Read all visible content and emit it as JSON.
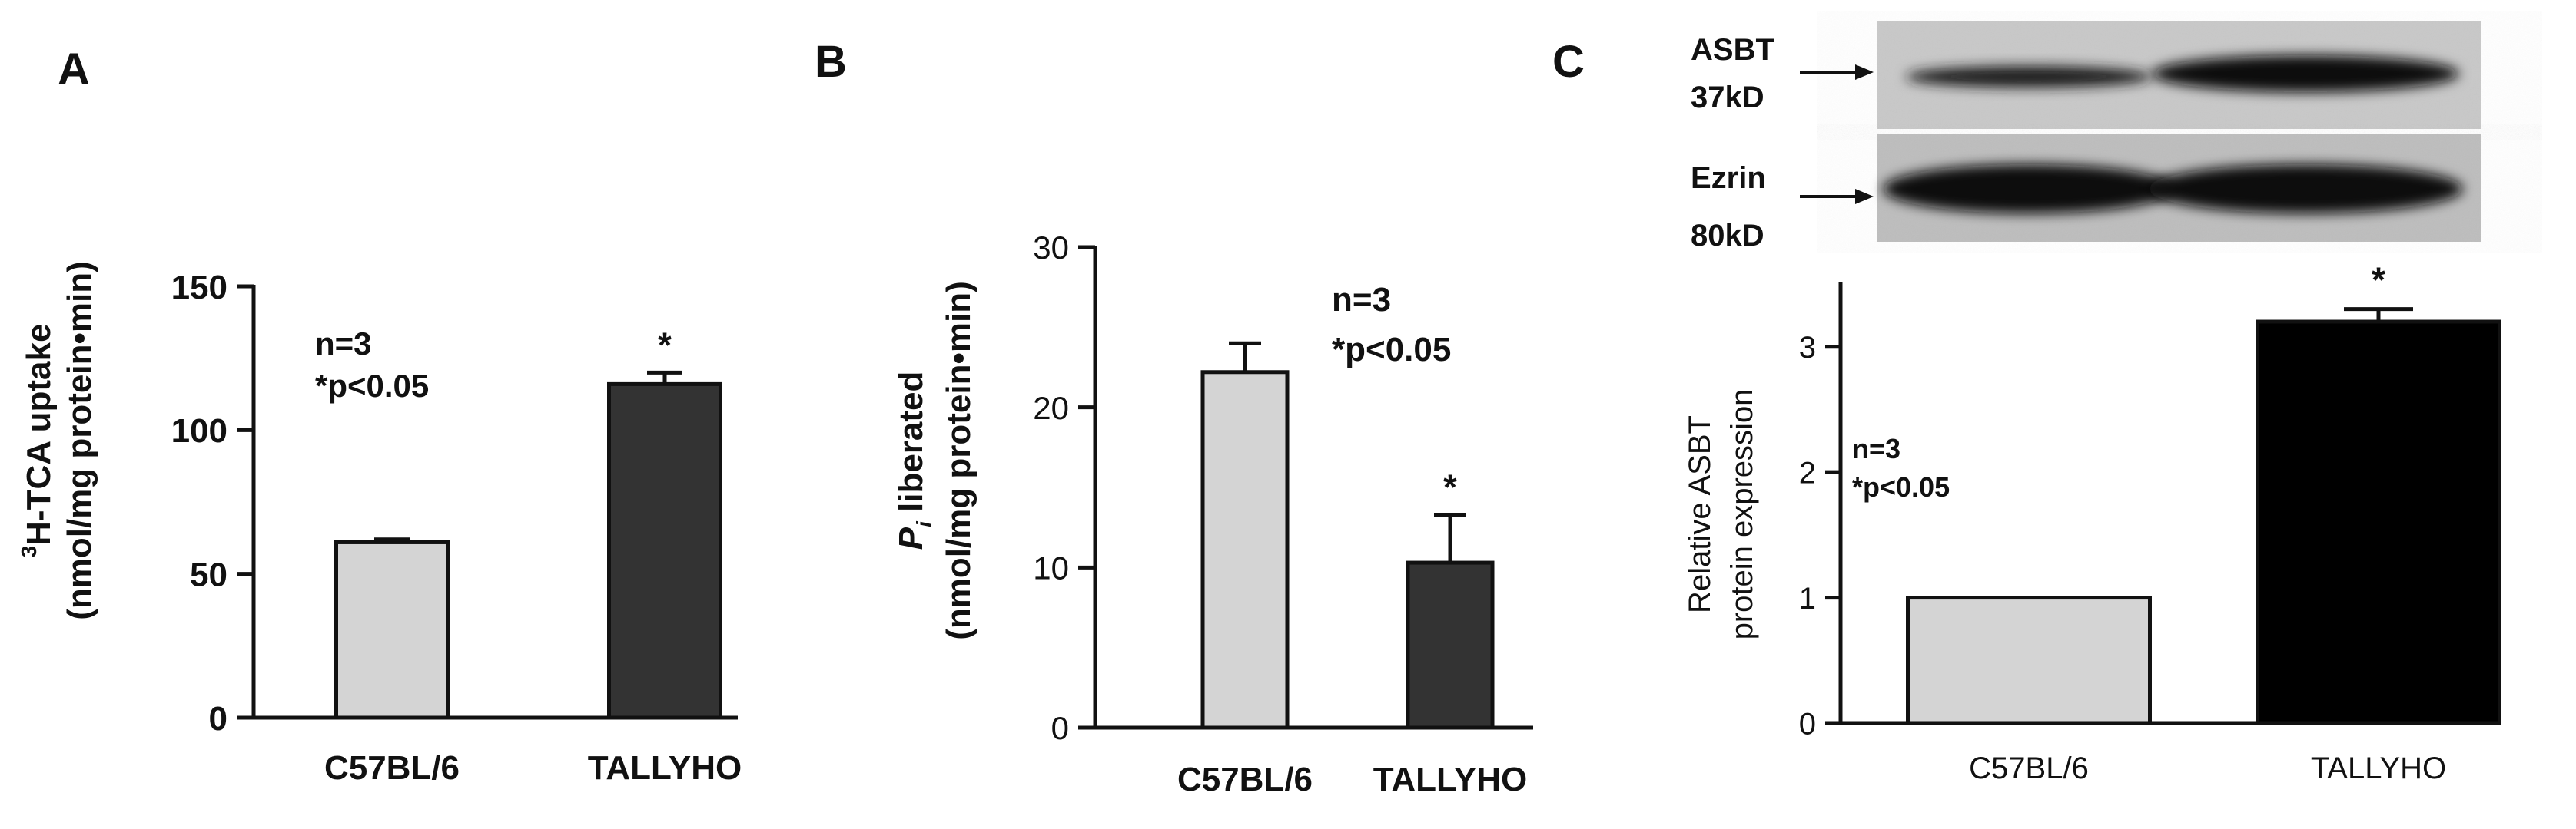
{
  "panels": {
    "A": {
      "letter": "A",
      "stats": [
        "n=3",
        "*p<0.05"
      ],
      "ylabel_line1_sup": "3",
      "ylabel_line1": "H-TCA uptake",
      "ylabel_line2": "(nmol/mg protein•min)"
    },
    "B": {
      "letter": "B",
      "stats": [
        "n=3",
        "*p<0.05"
      ],
      "ylabel_line1_ital": "P",
      "ylabel_line1_sub": "i",
      "ylabel_line1": " liberated",
      "ylabel_line2": "(nmol/mg protein•min)"
    },
    "C": {
      "letter": "C",
      "stats": [
        "n=3",
        "*p<0.05"
      ],
      "ylabel_line1": "Relative ASBT",
      "ylabel_line2": "protein expression",
      "blot": {
        "rows": [
          {
            "name": "ASBT",
            "size": "37kD"
          },
          {
            "name": "Ezrin",
            "size": "80kD"
          }
        ]
      }
    }
  },
  "chart_data": [
    {
      "type": "bar",
      "categories": [
        "C57BL/6",
        "TALLYHO"
      ],
      "values": [
        61,
        116
      ],
      "errors": [
        1,
        4
      ],
      "significance": [
        "",
        "*"
      ],
      "colors": [
        "#d4d4d4",
        "#333333"
      ],
      "ylim": [
        0,
        150
      ],
      "yticks": [
        0,
        50,
        100,
        150
      ],
      "grid": false
    },
    {
      "type": "bar",
      "categories": [
        "C57BL/6",
        "TALLYHO"
      ],
      "values": [
        22.2,
        10.3
      ],
      "errors": [
        1.8,
        3.0
      ],
      "significance": [
        "",
        "*"
      ],
      "colors": [
        "#d4d4d4",
        "#333333"
      ],
      "ylim": [
        0,
        30
      ],
      "yticks": [
        0,
        10,
        20,
        30
      ],
      "grid": false
    },
    {
      "type": "bar",
      "categories": [
        "C57BL/6",
        "TALLYHO"
      ],
      "values": [
        1.0,
        3.2
      ],
      "errors": [
        0,
        0.1
      ],
      "significance": [
        "",
        "*"
      ],
      "colors": [
        "#d4d4d4",
        "#000000"
      ],
      "ylim": [
        0,
        3.5
      ],
      "yticks": [
        0,
        1,
        2,
        3
      ],
      "grid": false
    }
  ]
}
